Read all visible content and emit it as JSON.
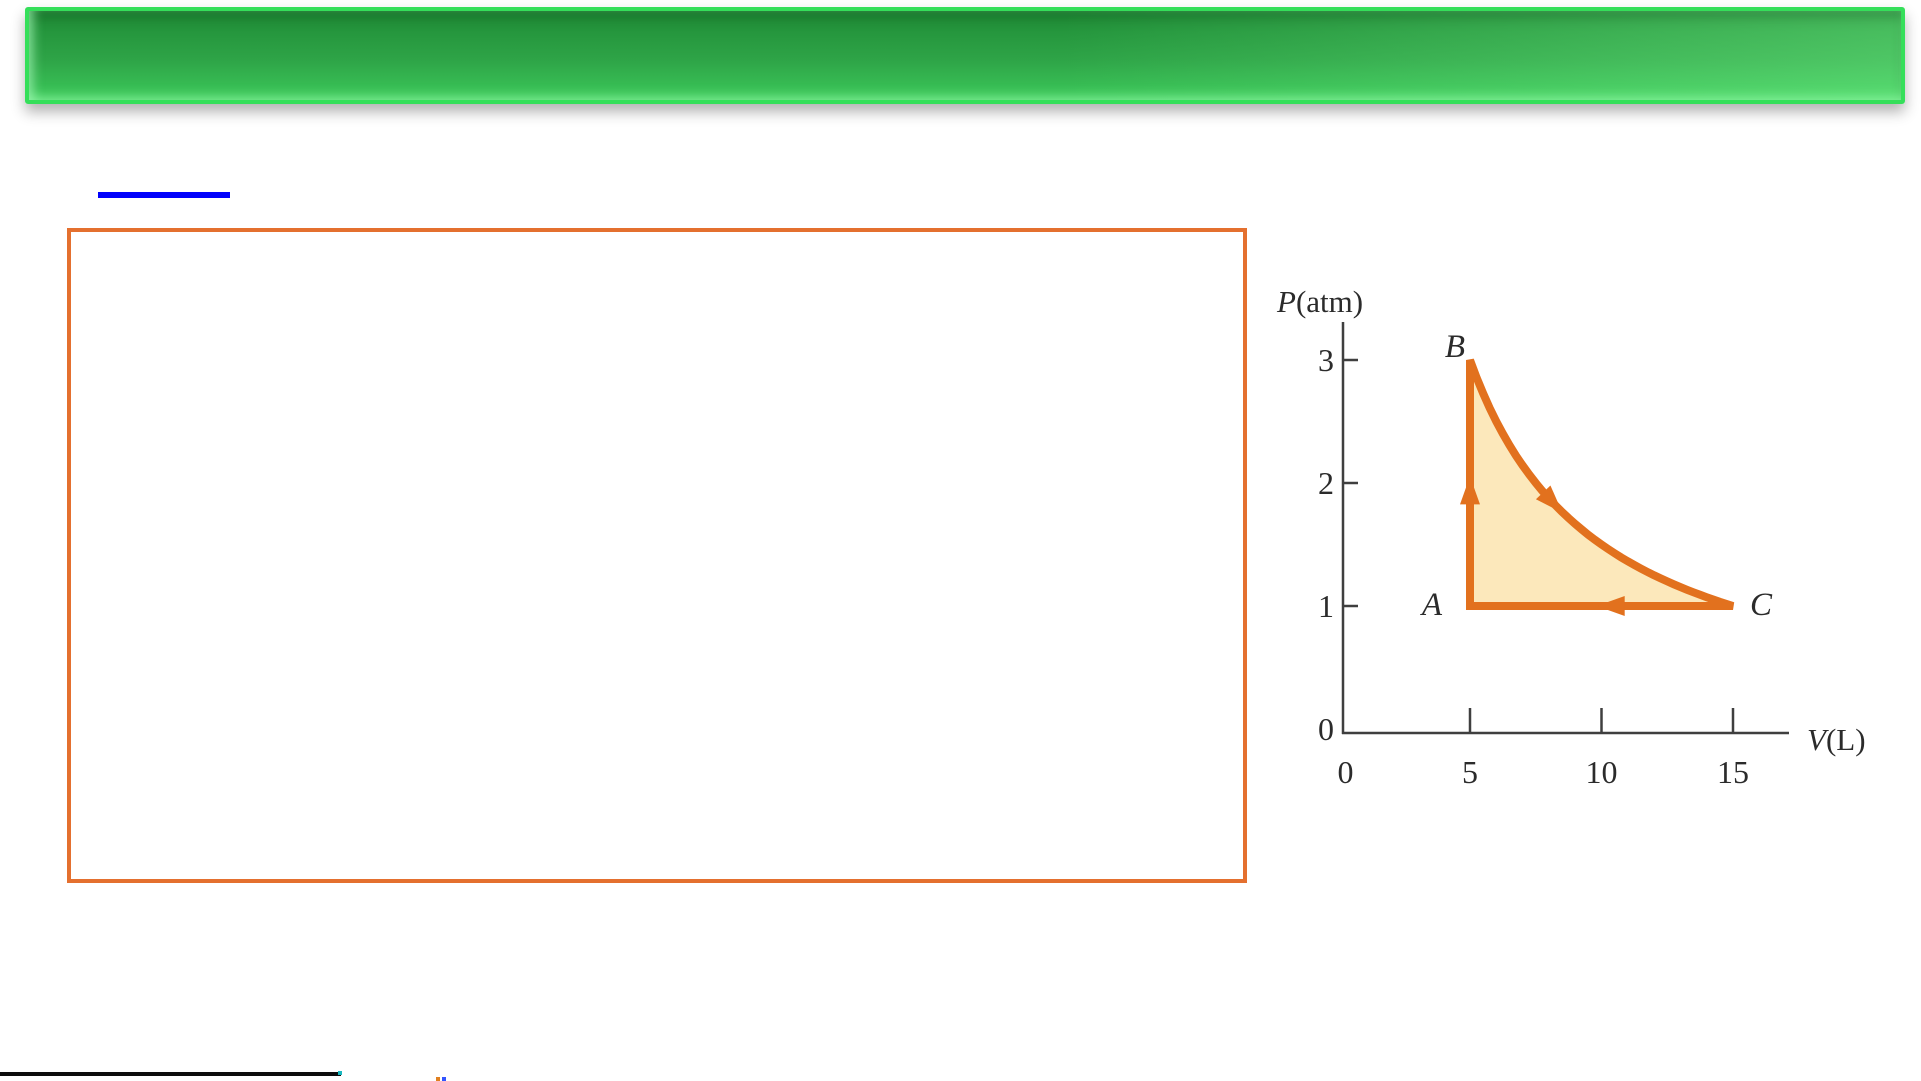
{
  "page": {
    "background": "#ffffff"
  },
  "banner": {
    "text": "",
    "border_color": "#35df5a",
    "gradient_top": "#1f8c36",
    "gradient_mid": "#2ea447",
    "gradient_bottom": "#3cc95a",
    "right_glow": "rgba(130,255,150,0.38)"
  },
  "link_underline": {
    "color": "#0202fc"
  },
  "content_box": {
    "border_color": "#e4702f"
  },
  "chart_data": {
    "type": "line",
    "title": "",
    "xlabel": "V(L)",
    "ylabel": "P(atm)",
    "x_ticks": [
      0,
      5,
      10,
      15
    ],
    "y_ticks": [
      0,
      1,
      2,
      3
    ],
    "xlim": [
      0,
      17
    ],
    "ylim": [
      0,
      3.3
    ],
    "grid": false,
    "points": [
      {
        "label": "A",
        "V": 5,
        "P": 1
      },
      {
        "label": "B",
        "V": 5,
        "P": 3
      },
      {
        "label": "C",
        "V": 15,
        "P": 1
      }
    ],
    "segments": [
      {
        "from": "A",
        "to": "B",
        "shape": "line"
      },
      {
        "from": "B",
        "to": "C",
        "shape": "hyperbola",
        "PV_const": 15
      },
      {
        "from": "C",
        "to": "A",
        "shape": "line"
      }
    ],
    "cycle_direction": "A→B→C→A",
    "shaded_region": true,
    "colors": {
      "path": "#e2711e",
      "fill": "#fce8bb",
      "axis": "#3f3f3f",
      "text": "#2b2b2b"
    }
  },
  "footer": {
    "line_color": "#0d0d0d",
    "fragment_colors": [
      "#19b8c0",
      "#e08020",
      "#3355ff"
    ]
  }
}
